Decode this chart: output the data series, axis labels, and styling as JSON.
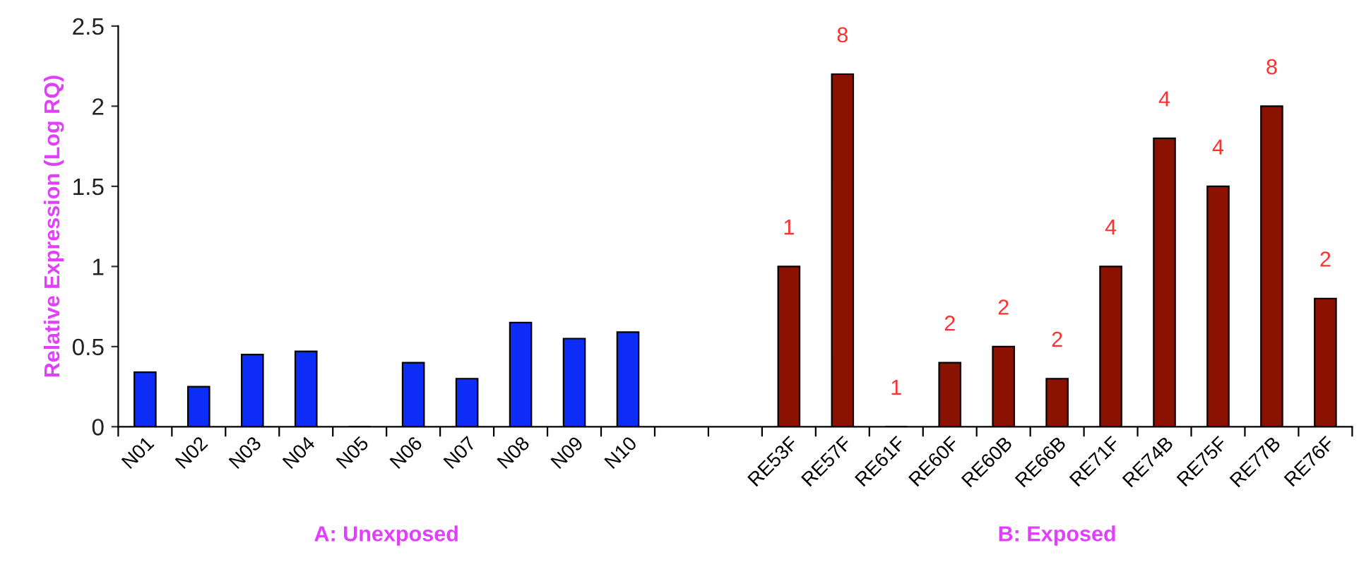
{
  "chart_data": {
    "type": "bar",
    "ylabel": "Relative Expression (Log RQ)",
    "categories": [
      "N01",
      "N02",
      "N03",
      "N04",
      "N05",
      "N06",
      "N07",
      "N08",
      "N09",
      "N10",
      null,
      null,
      "RE53F",
      "RE57F",
      "RE61F",
      "RE60F",
      "RE60B",
      "RE66B",
      "RE71F",
      "RE74B",
      "RE75F",
      "RE77B",
      "RE76F"
    ],
    "series": [
      {
        "color": "#0d2cf5",
        "values": [
          0.34,
          0.25,
          0.45,
          0.47,
          0,
          0.4,
          0.3,
          0.65,
          0.55,
          0.59,
          null,
          null,
          null,
          null,
          null,
          null,
          null,
          null,
          null,
          null,
          null,
          null,
          null
        ]
      },
      {
        "color": "#8b1200",
        "values": [
          null,
          null,
          null,
          null,
          null,
          null,
          null,
          null,
          null,
          null,
          null,
          null,
          1,
          2.2,
          0,
          0.4,
          0.5,
          0.3,
          1,
          1.8,
          1.5,
          2,
          0.8
        ]
      }
    ],
    "annotations": [
      "A: Unexposed",
      "B: Exposed",
      {
        "text": "1",
        "x": "RE53F",
        "y": 1
      },
      {
        "text": "8",
        "x": "RE57F",
        "y": 2.2
      },
      {
        "text": "1",
        "x": "RE61F",
        "y": 0
      },
      {
        "text": "2",
        "x": "RE60F",
        "y": 0.4
      },
      {
        "text": "2",
        "x": "RE60B",
        "y": 0.5
      },
      {
        "text": "2",
        "x": "RE66B",
        "y": 0.3
      },
      {
        "text": "4",
        "x": "RE71F",
        "y": 1
      },
      {
        "text": "4",
        "x": "RE74B",
        "y": 1.8
      },
      {
        "text": "4",
        "x": "RE75F",
        "y": 1.5
      },
      {
        "text": "8",
        "x": "RE77B",
        "y": 2
      },
      {
        "text": "2",
        "x": "RE76F",
        "y": 0.8
      }
    ],
    "ylim": [
      0,
      2.5
    ],
    "yticks": [
      0,
      0.5,
      1,
      1.5,
      2,
      2.5
    ],
    "grid": false,
    "legend": false
  }
}
